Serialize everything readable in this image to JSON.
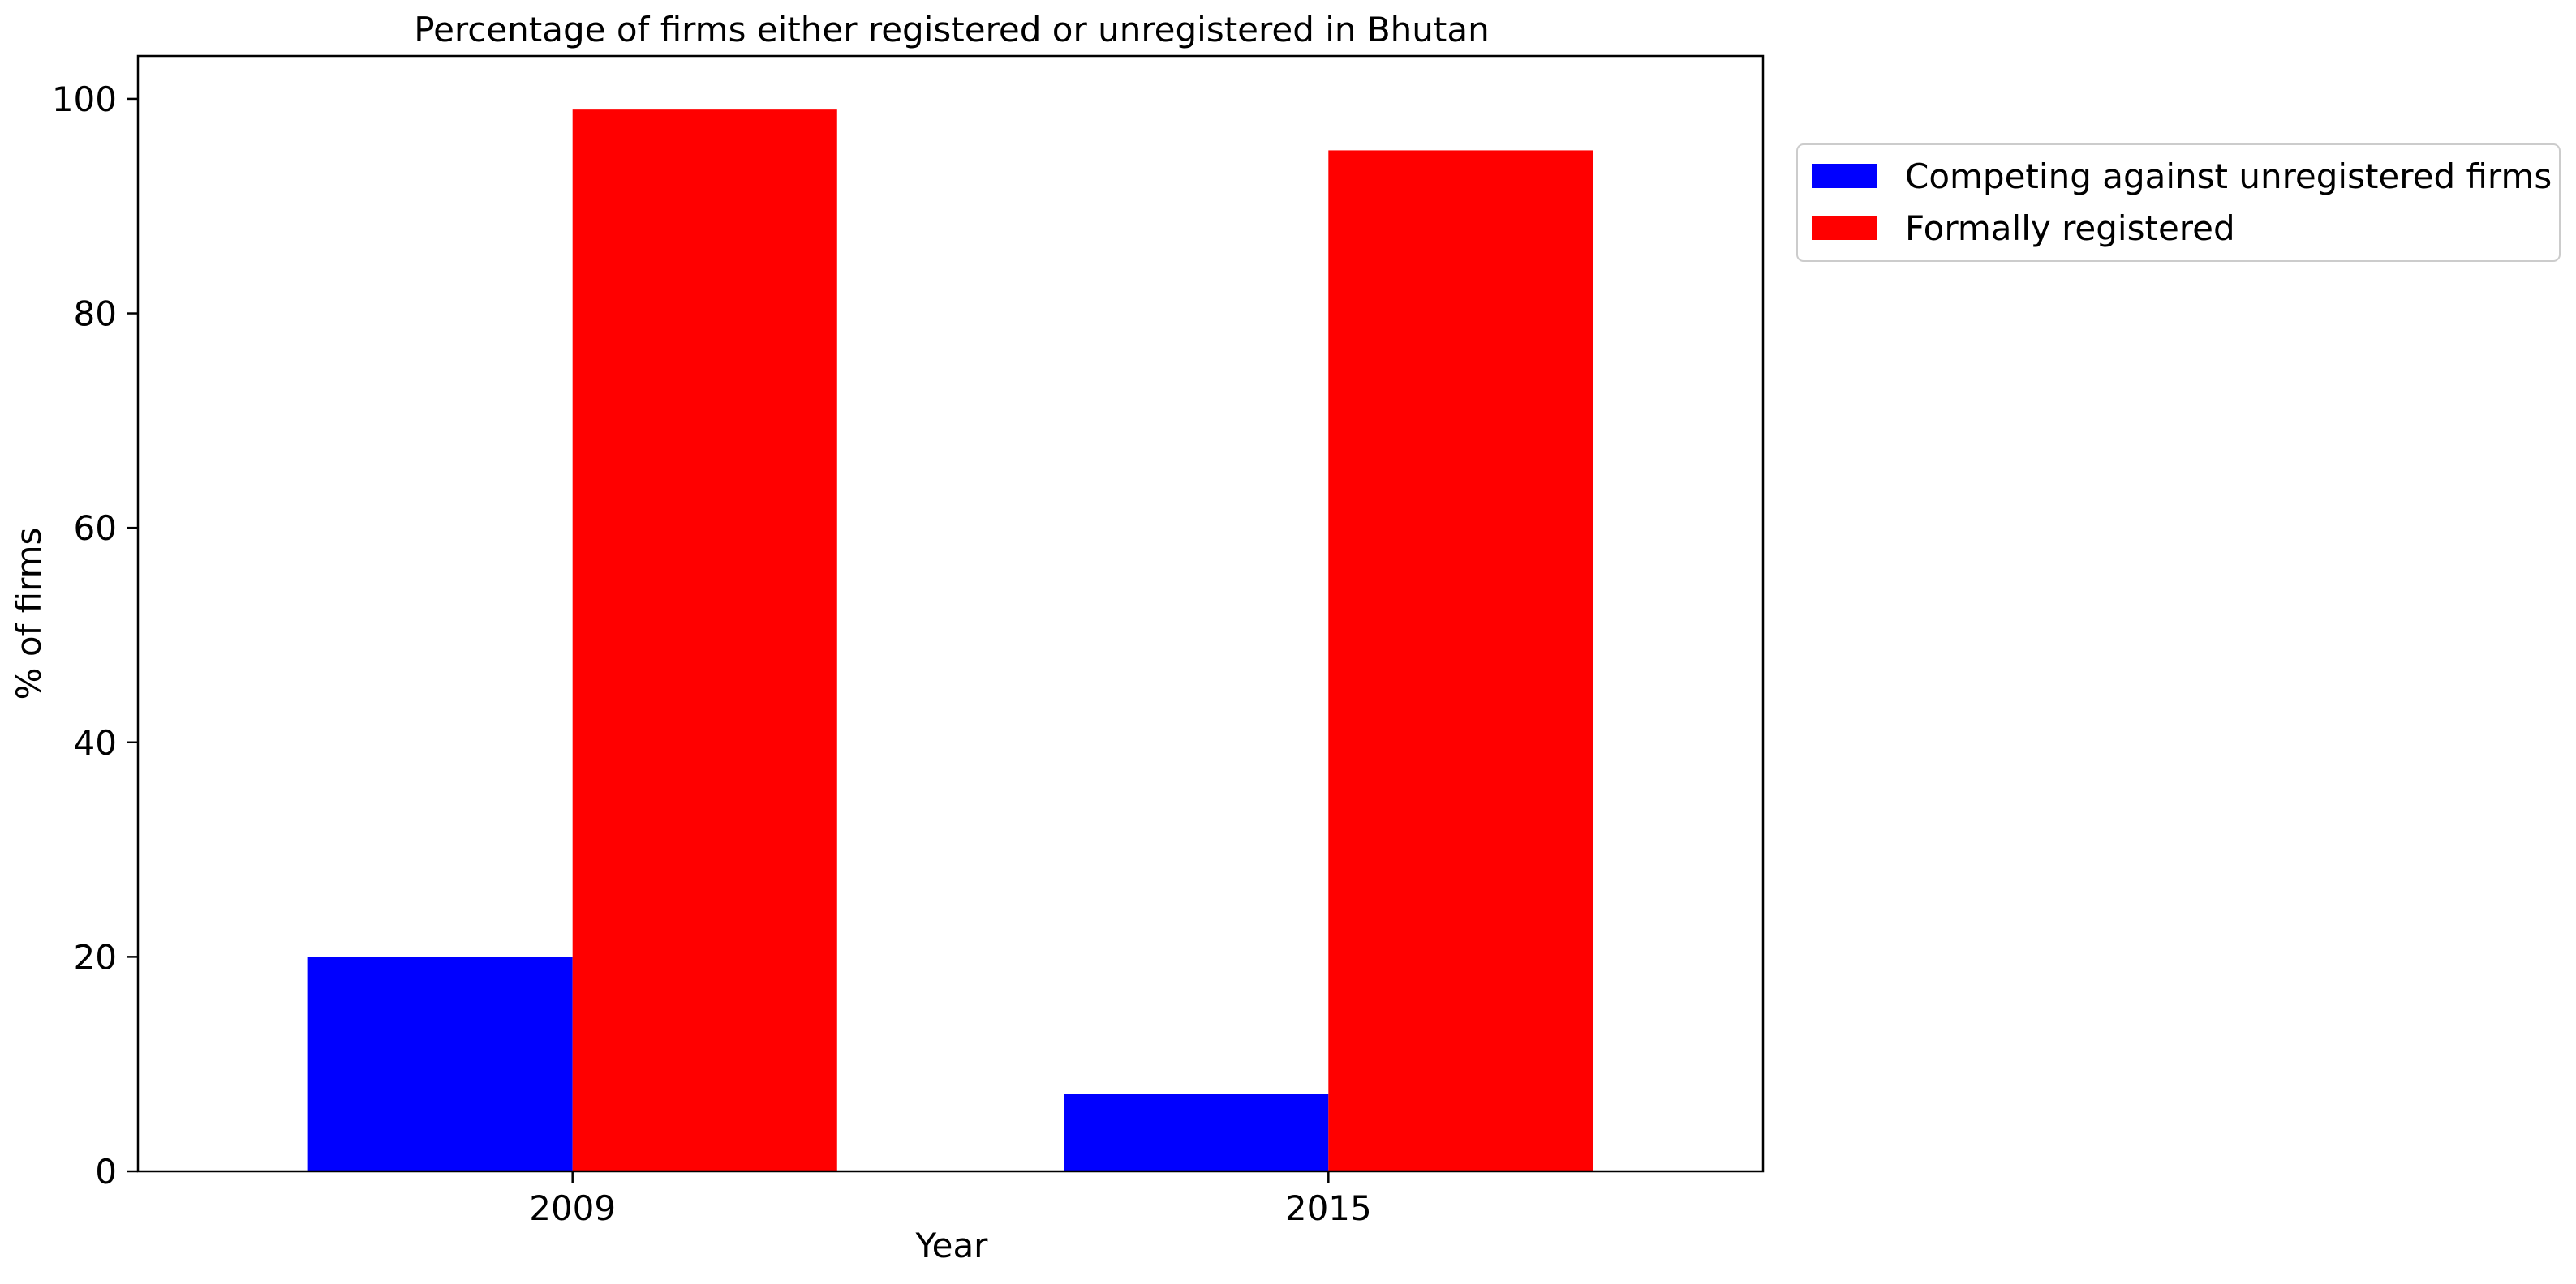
{
  "chart_data": {
    "type": "bar",
    "title": "Percentage of firms either registered or unregistered in Bhutan",
    "xlabel": "Year",
    "ylabel": "% of firms",
    "categories": [
      "2009",
      "2015"
    ],
    "series": [
      {
        "name": "Competing against unregistered firms",
        "values": [
          20.0,
          7.2
        ],
        "color": "#0000ff"
      },
      {
        "name": "Formally registered",
        "values": [
          99.0,
          95.2
        ],
        "color": "#ff0000"
      }
    ],
    "ylim": [
      0,
      104
    ],
    "yticks": [
      0,
      20,
      40,
      60,
      80,
      100
    ],
    "grid": false,
    "legend_position": "outside-right-top"
  }
}
